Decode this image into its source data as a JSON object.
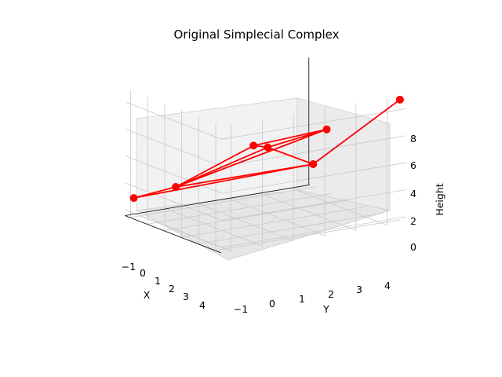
{
  "chart_data": {
    "type": "scatter",
    "title": "Original Simplecial Complex",
    "xlabel": "X",
    "ylabel": "Y",
    "zlabel": "Height",
    "x_ticks": [
      "−1",
      "0",
      "1",
      "2",
      "3",
      "4"
    ],
    "y_ticks": [
      "−1",
      "0",
      "1",
      "2",
      "3",
      "4"
    ],
    "z_ticks": [
      "0",
      "2",
      "4",
      "6",
      "8"
    ],
    "line_color": "#ff0000",
    "point_color": "#ff0000",
    "grid": true,
    "points": [
      {
        "x": 4.0,
        "y": -1.2,
        "z": 1.0
      },
      {
        "x": 3.0,
        "y": -0.4,
        "z": 2.0
      },
      {
        "x": 1.0,
        "y": 1.0,
        "z": 5.5
      },
      {
        "x": 2.0,
        "y": 2.0,
        "z": 4.5
      },
      {
        "x": 0.0,
        "y": 2.8,
        "z": 6.5
      },
      {
        "x": 3.0,
        "y": 4.0,
        "z": 2.0
      },
      {
        "x": -1.0,
        "y": 4.6,
        "z": 8.5
      }
    ],
    "edges": [
      [
        0,
        1
      ],
      [
        0,
        5
      ],
      [
        1,
        2
      ],
      [
        1,
        3
      ],
      [
        1,
        4
      ],
      [
        1,
        5
      ],
      [
        2,
        3
      ],
      [
        2,
        4
      ],
      [
        3,
        4
      ],
      [
        3,
        5
      ],
      [
        5,
        6
      ]
    ]
  }
}
